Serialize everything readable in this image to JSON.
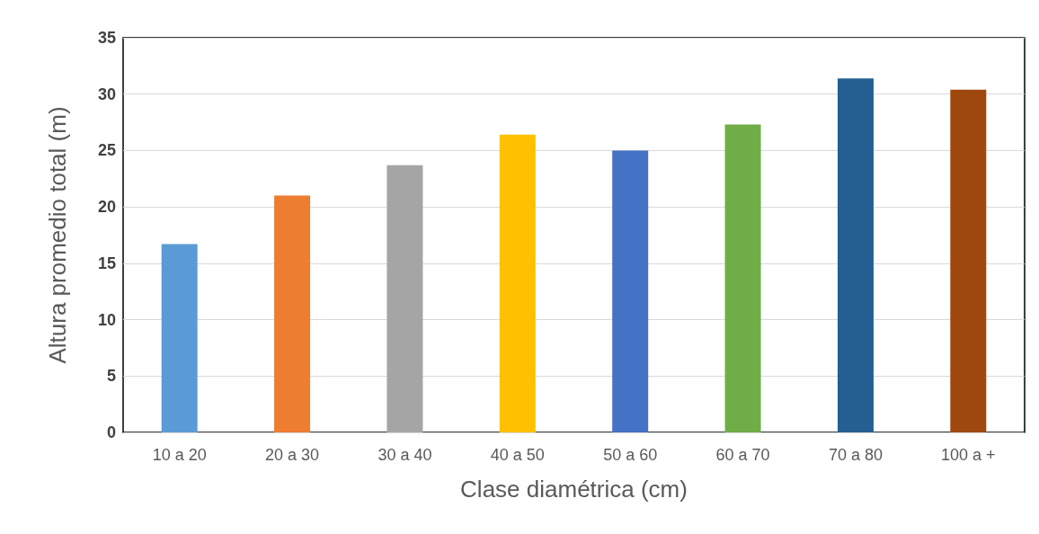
{
  "chart_data": {
    "type": "bar",
    "xlabel": "Clase diamétrica (cm)",
    "ylabel": "Altura promedio total (m)",
    "categories": [
      "10 a 20",
      "20 a 30",
      "30 a 40",
      "40 a 50",
      "50 a 60",
      "60 a 70",
      "70 a 80",
      "100 a +"
    ],
    "values": [
      16.7,
      21.0,
      23.7,
      26.4,
      25.0,
      27.3,
      31.4,
      30.4
    ],
    "colors": [
      "#5b9bd5",
      "#ed7d31",
      "#a5a5a5",
      "#ffc000",
      "#4472c4",
      "#70ad47",
      "#255e91",
      "#9e480e"
    ],
    "ylim": [
      0,
      35
    ],
    "yticks": [
      0,
      5,
      10,
      15,
      20,
      25,
      30,
      35
    ],
    "grid": "y"
  }
}
